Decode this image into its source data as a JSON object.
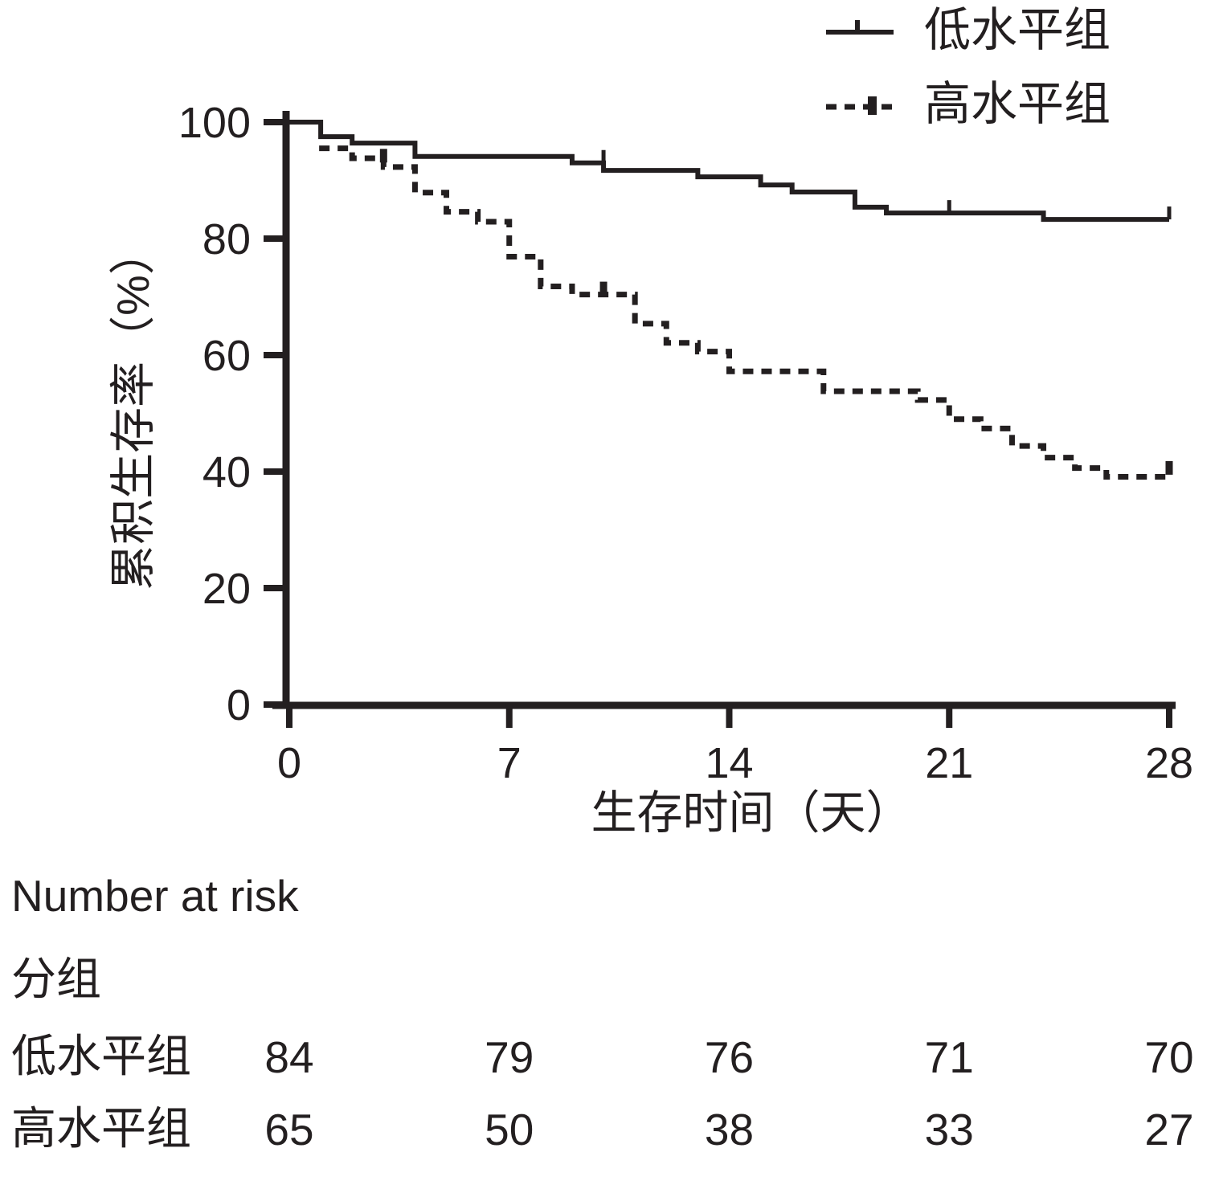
{
  "colors": {
    "ink": "#231f20",
    "background": "#ffffff"
  },
  "figure": {
    "legend": {
      "items": [
        {
          "label": "低水平组",
          "style": "solid"
        },
        {
          "label": "高水平组",
          "style": "dashed"
        }
      ]
    },
    "number_at_risk": {
      "title": "Number at risk",
      "group_label": "分组",
      "times": [
        0,
        7,
        14,
        21,
        28
      ],
      "rows": [
        {
          "label": "低水平组",
          "values": [
            84,
            79,
            76,
            71,
            70
          ]
        },
        {
          "label": "高水平组",
          "values": [
            65,
            50,
            38,
            33,
            27
          ]
        }
      ]
    }
  },
  "chart_data": {
    "type": "line",
    "subtype": "kaplan-meier-step",
    "title": "",
    "xlabel": "生存时间（天）",
    "ylabel": "累积生存率（%）",
    "xlim": [
      0,
      28
    ],
    "ylim": [
      0,
      100
    ],
    "xticks": [
      0,
      7,
      14,
      21,
      28
    ],
    "yticks": [
      0,
      20,
      40,
      60,
      80,
      100
    ],
    "grid": false,
    "legend_position": "top-right",
    "series": [
      {
        "name": "低水平组",
        "line_style": "solid",
        "color": "#231f20",
        "start_t": 0,
        "steps": [
          [
            0,
            100
          ],
          [
            1,
            97.5
          ],
          [
            2,
            96.4
          ],
          [
            4,
            94.1
          ],
          [
            9,
            93.0
          ],
          [
            10,
            91.7
          ],
          [
            13,
            90.6
          ],
          [
            15,
            89.2
          ],
          [
            16,
            88.0
          ],
          [
            18,
            85.4
          ],
          [
            19,
            84.4
          ],
          [
            24,
            83.3
          ],
          [
            28,
            83.3
          ]
        ],
        "censor_marks": [
          [
            10,
            93.0
          ],
          [
            21,
            84.4
          ],
          [
            28,
            83.3
          ]
        ]
      },
      {
        "name": "高水平组",
        "line_style": "dashed",
        "color": "#231f20",
        "start_t": 0.95,
        "steps": [
          [
            1,
            95.5
          ],
          [
            2,
            93.8
          ],
          [
            3,
            92.3
          ],
          [
            4,
            87.9
          ],
          [
            5,
            84.6
          ],
          [
            6,
            82.9
          ],
          [
            7,
            76.9
          ],
          [
            8,
            71.8
          ],
          [
            9,
            70.4
          ],
          [
            11,
            65.4
          ],
          [
            12,
            62.1
          ],
          [
            13,
            60.6
          ],
          [
            14,
            57.2
          ],
          [
            17,
            53.8
          ],
          [
            20,
            52.3
          ],
          [
            21,
            49.0
          ],
          [
            22,
            47.4
          ],
          [
            23,
            44.4
          ],
          [
            24,
            42.4
          ],
          [
            25,
            40.6
          ],
          [
            26,
            39.1
          ],
          [
            28,
            39.1
          ]
        ],
        "censor_marks": [
          [
            3,
            93.2
          ],
          [
            10,
            70.4
          ],
          [
            28,
            39.6
          ]
        ]
      }
    ]
  }
}
